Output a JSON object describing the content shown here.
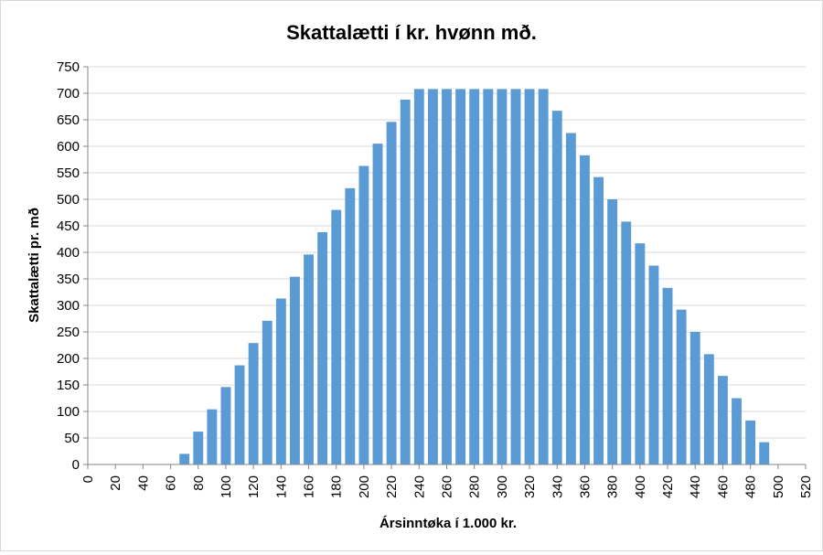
{
  "chart_data": {
    "type": "bar",
    "title": "Skattalætti í kr. hvønn mð.",
    "xlabel": "Ársinntøka í 1.000 kr.",
    "ylabel": "Skattalætti pr. mð",
    "xlim": [
      0,
      520
    ],
    "ylim": [
      0,
      750
    ],
    "x_ticks": [
      0,
      20,
      40,
      60,
      80,
      100,
      120,
      140,
      160,
      180,
      200,
      220,
      240,
      260,
      280,
      300,
      320,
      340,
      360,
      380,
      400,
      420,
      440,
      460,
      480,
      500,
      520
    ],
    "y_ticks": [
      0,
      50,
      100,
      150,
      200,
      250,
      300,
      350,
      400,
      450,
      500,
      550,
      600,
      650,
      700,
      750
    ],
    "grid": true,
    "legend": "none",
    "bar_color": "#5b9bd5",
    "x": [
      70,
      80,
      90,
      100,
      110,
      120,
      130,
      140,
      150,
      160,
      170,
      180,
      190,
      200,
      210,
      220,
      230,
      240,
      250,
      260,
      270,
      280,
      290,
      300,
      310,
      320,
      330,
      340,
      350,
      360,
      370,
      380,
      390,
      400,
      410,
      420,
      430,
      440,
      450,
      460,
      470,
      480,
      490
    ],
    "values": [
      20,
      62,
      104,
      146,
      187,
      229,
      271,
      313,
      354,
      396,
      438,
      480,
      521,
      563,
      605,
      646,
      688,
      708,
      708,
      708,
      708,
      708,
      708,
      708,
      708,
      708,
      708,
      667,
      625,
      583,
      542,
      500,
      458,
      417,
      375,
      333,
      292,
      250,
      208,
      167,
      125,
      83,
      42
    ]
  }
}
